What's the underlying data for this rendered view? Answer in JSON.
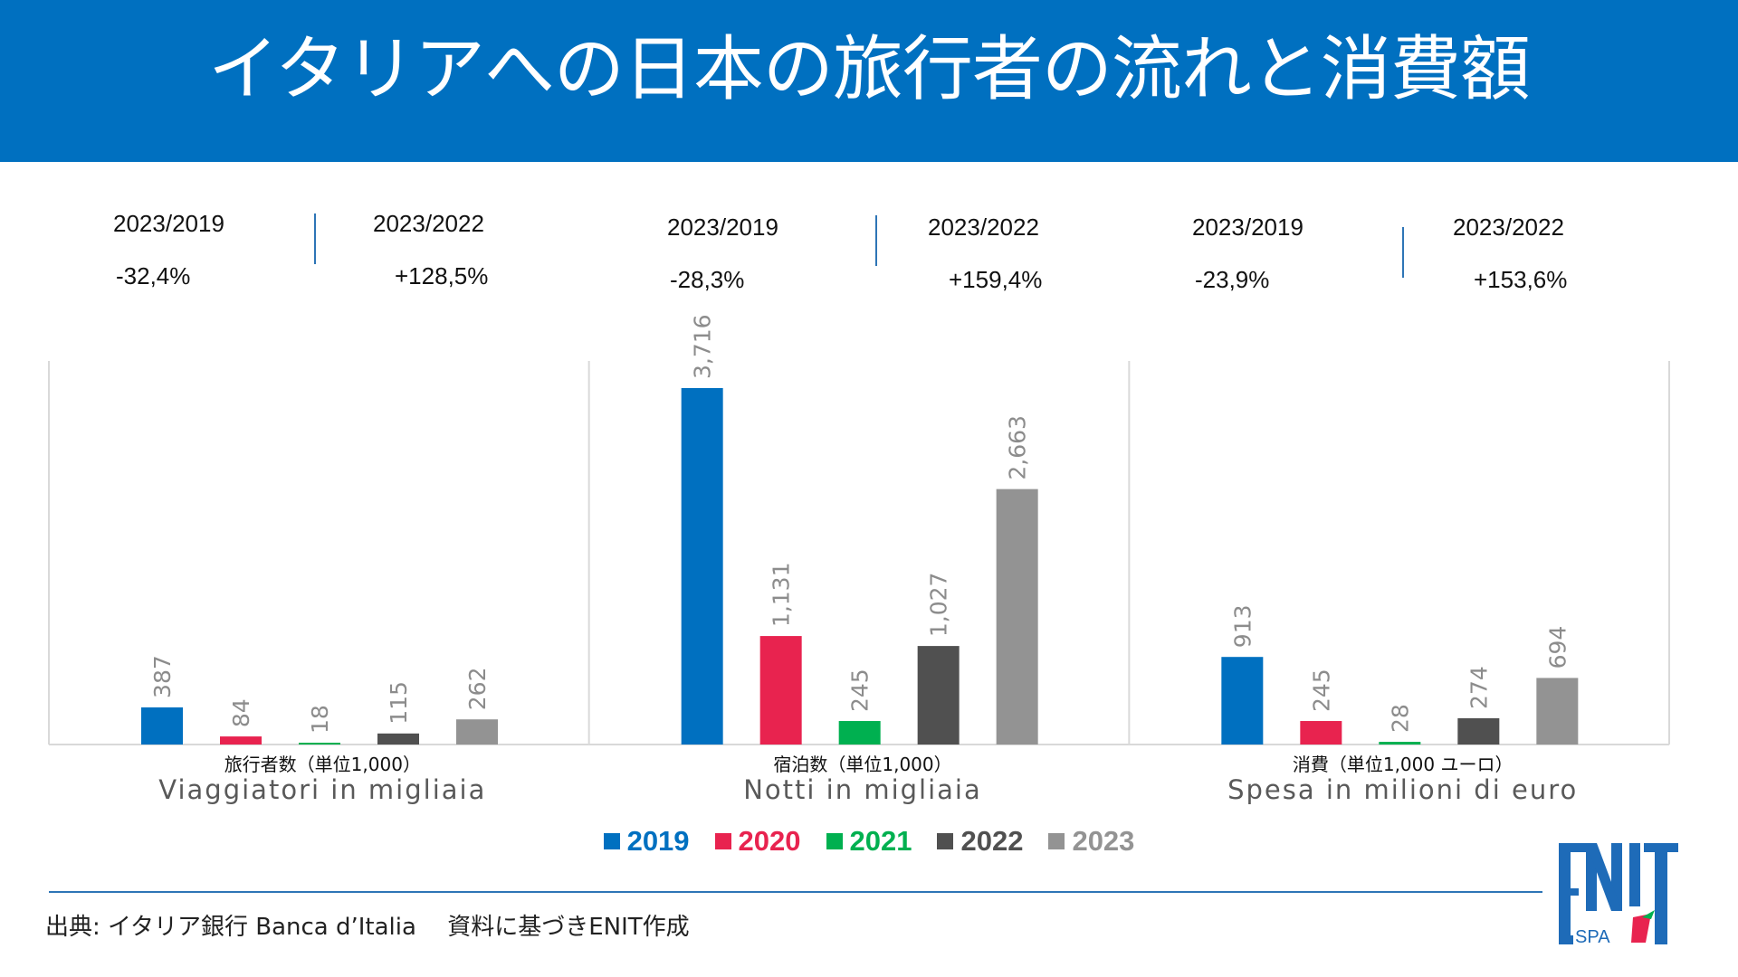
{
  "header": {
    "title": "イタリアへの日本の旅行者の流れと消費額"
  },
  "comparisons": [
    {
      "group": "travelers",
      "left_label": "2023/2019",
      "left_value": "-32,4%",
      "right_label": "2023/2022",
      "right_value": "+128,5%"
    },
    {
      "group": "nights",
      "left_label": "2023/2019",
      "left_value": "-28,3%",
      "right_label": "2023/2022",
      "right_value": "+159,4%"
    },
    {
      "group": "spending",
      "left_label": "2023/2019",
      "left_value": "-23,9%",
      "right_label": "2023/2022",
      "right_value": "+153,6%"
    }
  ],
  "colors": {
    "2019": "#0070C0",
    "2020": "#E8234F",
    "2021": "#00B050",
    "2022": "#505050",
    "2023": "#939393",
    "brand": "#0070C0"
  },
  "chart_data": {
    "type": "bar",
    "title": "イタリアへの日本の旅行者の流れと消費額",
    "categories": [
      {
        "label_jp": "旅行者数（単位1,000）",
        "label_it": "Viaggiatori in migliaia"
      },
      {
        "label_jp": "宿泊数（単位1,000）",
        "label_it": "Notti in migliaia"
      },
      {
        "label_jp": "消費（単位1,000 ユーロ）",
        "label_it": "Spesa in milioni di euro"
      }
    ],
    "series": [
      {
        "name": "2019",
        "values": [
          387,
          3716,
          913
        ],
        "labels": [
          "387",
          "3,716",
          "913"
        ]
      },
      {
        "name": "2020",
        "values": [
          84,
          1131,
          245
        ],
        "labels": [
          "84",
          "1,131",
          "245"
        ]
      },
      {
        "name": "2021",
        "values": [
          18,
          245,
          28
        ],
        "labels": [
          "18",
          "245",
          "28"
        ]
      },
      {
        "name": "2022",
        "values": [
          115,
          1027,
          274
        ],
        "labels": [
          "115",
          "1,027",
          "274"
        ]
      },
      {
        "name": "2023",
        "values": [
          262,
          2663,
          694
        ],
        "labels": [
          "262",
          "2,663",
          "694"
        ]
      }
    ],
    "xlabel": "",
    "ylabel": "",
    "ylim": [
      0,
      4000
    ],
    "grid": false,
    "legend": "bottom-center",
    "data_labels": "rotated-vertical"
  },
  "legend": {
    "items": [
      "2019",
      "2020",
      "2021",
      "2022",
      "2023"
    ]
  },
  "footer": {
    "source": "出典: イタリア銀行 Banca d’Italia　 資料に基づきENIT作成"
  },
  "logo": {
    "text_main": "ENIT",
    "text_sub": "SPA"
  }
}
